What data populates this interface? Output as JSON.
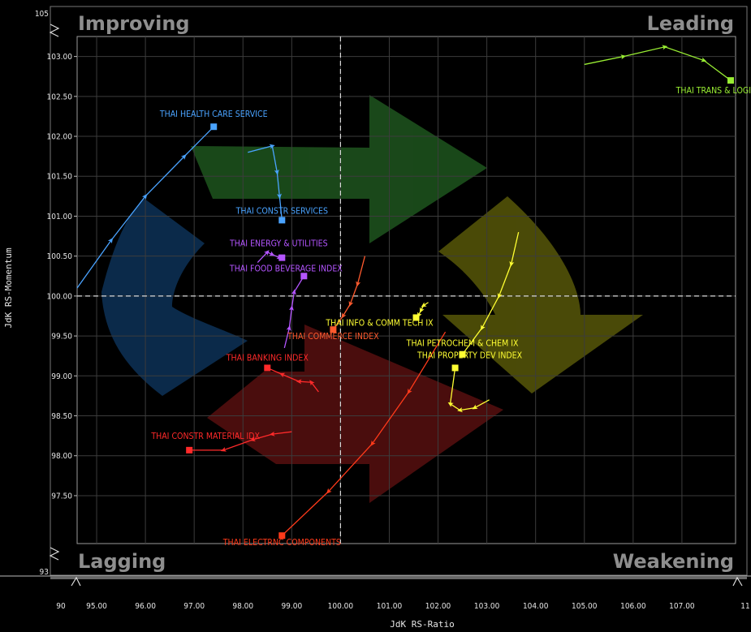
{
  "chart_data": {
    "type": "scatter",
    "title": "",
    "xlabel": "JdK RS-Ratio",
    "ylabel": "JdK RS-Momentum",
    "xlim": [
      94.6,
      108.1
    ],
    "ylim": [
      96.9,
      103.25
    ],
    "x_ticks": [
      "95.00",
      "96.00",
      "97.00",
      "98.00",
      "99.00",
      "100.00",
      "101.00",
      "102.00",
      "103.00",
      "104.00",
      "105.00",
      "106.00",
      "107.00"
    ],
    "y_ticks": [
      "97.50",
      "98.00",
      "98.50",
      "99.00",
      "99.50",
      "100.00",
      "100.50",
      "101.00",
      "101.50",
      "102.00",
      "102.50",
      "103.00"
    ],
    "x_break_labels": {
      "low": "90",
      "high": "11"
    },
    "y_break_labels": {
      "low": "93",
      "high": "105"
    },
    "quadrants": {
      "top_left": "Improving",
      "top_right": "Leading",
      "bottom_left": "Lagging",
      "bottom_right": "Weakening"
    },
    "grid": true,
    "reference_lines": {
      "x": 100.0,
      "y": 100.0
    },
    "series": [
      {
        "name": "THAI HEALTH CARE SERVICE",
        "color": "#4aa3ff",
        "points": [
          [
            94.6,
            100.1
          ],
          [
            95.3,
            100.7
          ],
          [
            96.0,
            101.25
          ],
          [
            96.8,
            101.75
          ],
          [
            97.4,
            102.12
          ]
        ]
      },
      {
        "name": "THAI CONSTR SERVICES",
        "color": "#4aa3ff",
        "points": [
          [
            98.1,
            101.8
          ],
          [
            98.6,
            101.88
          ],
          [
            98.7,
            101.55
          ],
          [
            98.75,
            101.25
          ],
          [
            98.8,
            100.95
          ]
        ]
      },
      {
        "name": "THAI ENERGY & UTILITIES",
        "color": "#b455ff",
        "points": [
          [
            98.3,
            100.42
          ],
          [
            98.5,
            100.55
          ],
          [
            98.6,
            100.52
          ],
          [
            98.75,
            100.48
          ],
          [
            98.8,
            100.48
          ]
        ]
      },
      {
        "name": "THAI FOOD BEVERAGE INDEX",
        "color": "#b455ff",
        "points": [
          [
            98.85,
            99.35
          ],
          [
            98.95,
            99.6
          ],
          [
            99.0,
            99.85
          ],
          [
            99.05,
            100.05
          ],
          [
            99.25,
            100.25
          ]
        ]
      },
      {
        "name": "THAI COMMERCE INDEX",
        "color": "#ff5a2e",
        "points": [
          [
            100.5,
            100.5
          ],
          [
            100.35,
            100.15
          ],
          [
            100.2,
            99.9
          ],
          [
            100.05,
            99.75
          ],
          [
            99.85,
            99.58
          ]
        ]
      },
      {
        "name": "THAI BANKING INDEX",
        "color": "#ff2a2a",
        "points": [
          [
            99.55,
            98.8
          ],
          [
            99.4,
            98.92
          ],
          [
            99.15,
            98.93
          ],
          [
            98.8,
            99.02
          ],
          [
            98.5,
            99.1
          ]
        ]
      },
      {
        "name": "THAI CONSTR MATERIAL IDX",
        "color": "#ff2a2a",
        "points": [
          [
            99.0,
            98.3
          ],
          [
            98.6,
            98.27
          ],
          [
            98.2,
            98.2
          ],
          [
            97.6,
            98.07
          ],
          [
            96.9,
            98.07
          ]
        ]
      },
      {
        "name": "THAI ELECTRNC COMPONENTS",
        "color": "#ff3a1a",
        "points": [
          [
            102.15,
            99.55
          ],
          [
            101.4,
            98.8
          ],
          [
            100.65,
            98.15
          ],
          [
            99.75,
            97.55
          ],
          [
            98.8,
            97.0
          ]
        ]
      },
      {
        "name": "THAI INFO & COMM TECH IX",
        "color": "#ffff33",
        "points": [
          [
            101.8,
            99.92
          ],
          [
            101.7,
            99.88
          ],
          [
            101.65,
            99.82
          ],
          [
            101.6,
            99.76
          ],
          [
            101.55,
            99.73
          ]
        ]
      },
      {
        "name": "THAI PETROCHEM & CHEM IX",
        "color": "#ffff33",
        "points": [
          [
            103.65,
            100.8
          ],
          [
            103.5,
            100.4
          ],
          [
            103.25,
            100.0
          ],
          [
            102.9,
            99.6
          ],
          [
            102.5,
            99.27
          ]
        ]
      },
      {
        "name": "THAI PROPERTY DEV INDEX",
        "color": "#ffff33",
        "points": [
          [
            103.05,
            98.7
          ],
          [
            102.75,
            98.6
          ],
          [
            102.45,
            98.57
          ],
          [
            102.25,
            98.65
          ],
          [
            102.35,
            99.1
          ]
        ]
      },
      {
        "name": "THAI TRANS & LOGIST INDX",
        "color": "#99ee33",
        "points": [
          [
            105.0,
            102.9
          ],
          [
            105.8,
            103.0
          ],
          [
            106.65,
            103.12
          ],
          [
            107.45,
            102.95
          ],
          [
            108.0,
            102.7
          ]
        ]
      }
    ]
  }
}
